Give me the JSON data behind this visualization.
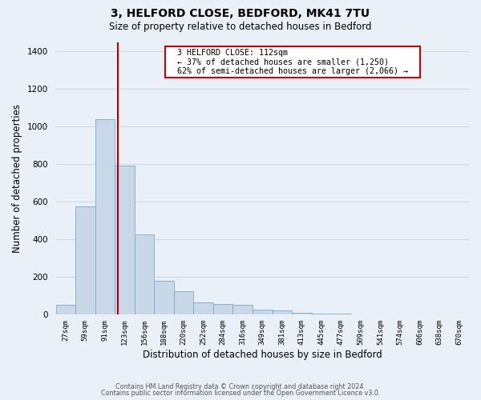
{
  "title_line1": "3, HELFORD CLOSE, BEDFORD, MK41 7TU",
  "title_line2": "Size of property relative to detached houses in Bedford",
  "xlabel": "Distribution of detached houses by size in Bedford",
  "ylabel": "Number of detached properties",
  "bar_labels": [
    "27sqm",
    "59sqm",
    "91sqm",
    "123sqm",
    "156sqm",
    "188sqm",
    "220sqm",
    "252sqm",
    "284sqm",
    "316sqm",
    "349sqm",
    "381sqm",
    "413sqm",
    "445sqm",
    "477sqm",
    "509sqm",
    "541sqm",
    "574sqm",
    "606sqm",
    "638sqm",
    "670sqm"
  ],
  "bar_values": [
    50,
    575,
    1040,
    790,
    425,
    180,
    125,
    65,
    55,
    50,
    25,
    20,
    10,
    5,
    2,
    1,
    0,
    0,
    0,
    0,
    0
  ],
  "bar_color": "#c8d8e8",
  "bar_edge_color": "#7aaac8",
  "vline_x_index": 2.67,
  "annotation_line1": "3 HELFORD CLOSE: 112sqm",
  "annotation_line2": "← 37% of detached houses are smaller (1,250)",
  "annotation_line3": "62% of semi-detached houses are larger (2,066) →",
  "vline_color": "#aa0000",
  "annotation_box_edge": "#cc0000",
  "ylim": [
    0,
    1450
  ],
  "yticks": [
    0,
    200,
    400,
    600,
    800,
    1000,
    1200,
    1400
  ],
  "grid_color": "#d0d8e0",
  "background_color": "#eaf0f8",
  "footer_line1": "Contains HM Land Registry data © Crown copyright and database right 2024.",
  "footer_line2": "Contains public sector information licensed under the Open Government Licence v3.0."
}
